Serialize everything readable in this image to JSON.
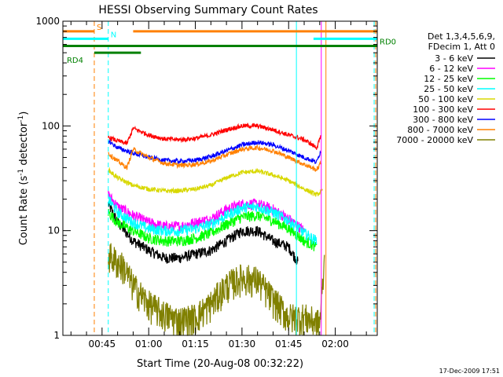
{
  "chart_data": {
    "type": "line",
    "title": "HESSI Observing Summary Count Rates",
    "ylabel_parts": [
      "Count Rate (s",
      "-1",
      " detector",
      "-1",
      ")"
    ],
    "xlabel": "Start Time (20-Aug-08 00:32:22)",
    "timestamp": "17-Dec-2009 17:51",
    "y_scale": "log",
    "ylim": [
      1,
      1000
    ],
    "yticks": [
      1,
      10,
      100,
      1000
    ],
    "ytick_labels": [
      "1",
      "10",
      "100",
      "1000"
    ],
    "xlim_minutes": [
      32.4,
      133.5
    ],
    "xticks_minutes": [
      45,
      60,
      75,
      90,
      105,
      120
    ],
    "xtick_labels": [
      "00:45",
      "01:00",
      "01:15",
      "01:30",
      "01:45",
      "02:00"
    ],
    "legend_title": [
      "Det 1,3,4,5,6,9,",
      "FDecim 1, Att 0"
    ],
    "series": [
      {
        "name": "3 - 6 keV",
        "color": "#000000",
        "x": [
          47,
          50,
          55,
          60,
          65,
          70,
          75,
          80,
          85,
          90,
          95,
          100,
          105,
          108
        ],
        "y": [
          18,
          12,
          8,
          6.5,
          5.5,
          5.5,
          6,
          6.5,
          8,
          10,
          10,
          8,
          7,
          5
        ]
      },
      {
        "name": "6 - 12 keV",
        "color": "#ff00ff",
        "x": [
          47,
          50,
          55,
          60,
          65,
          70,
          75,
          80,
          85,
          90,
          95,
          100,
          105,
          110
        ],
        "y": [
          22,
          17,
          14,
          12,
          11,
          11,
          12,
          13,
          16,
          18,
          18,
          16,
          13,
          10
        ]
      },
      {
        "name": "12 - 25 keV",
        "color": "#00ff00",
        "x": [
          47,
          50,
          55,
          60,
          65,
          70,
          75,
          80,
          85,
          90,
          95,
          100,
          105,
          110,
          114
        ],
        "y": [
          15,
          12,
          10,
          8.5,
          8,
          8,
          8.5,
          9.5,
          11.5,
          13.5,
          14,
          12.5,
          10.5,
          8,
          7
        ]
      },
      {
        "name": "25 - 50 keV",
        "color": "#00ffff",
        "x": [
          47,
          50,
          55,
          60,
          65,
          70,
          75,
          80,
          85,
          90,
          95,
          100,
          105,
          110,
          114
        ],
        "y": [
          20,
          15,
          12,
          10.5,
          10,
          10,
          10.5,
          11.5,
          14,
          16.5,
          17,
          15,
          12.5,
          9.5,
          8
        ]
      },
      {
        "name": "50 - 100 keV",
        "color": "#d8d800",
        "x": [
          47,
          50,
          55,
          60,
          65,
          70,
          75,
          80,
          85,
          90,
          95,
          100,
          105,
          110,
          114,
          116
        ],
        "y": [
          38,
          32,
          27,
          25,
          24,
          24,
          25,
          27,
          32,
          36,
          37,
          34,
          30,
          25,
          22,
          24
        ]
      },
      {
        "name": "100 - 300 keV",
        "color": "#ff0000",
        "x": [
          47,
          50,
          53,
          55,
          60,
          65,
          70,
          75,
          80,
          85,
          90,
          95,
          100,
          105,
          110,
          114,
          115.5
        ],
        "y": [
          78,
          72,
          68,
          95,
          82,
          75,
          74,
          76,
          82,
          92,
          100,
          100,
          92,
          82,
          74,
          62,
          80
        ]
      },
      {
        "name": "300 - 800 keV",
        "color": "#0000ff",
        "x": [
          47,
          50,
          55,
          60,
          65,
          70,
          75,
          80,
          85,
          90,
          95,
          100,
          105,
          110,
          114,
          115.5
        ],
        "y": [
          72,
          62,
          55,
          50,
          47,
          46,
          47,
          51,
          58,
          66,
          70,
          66,
          58,
          50,
          45,
          60
        ]
      },
      {
        "name": "800 - 7000 keV",
        "color": "#ff8000",
        "x": [
          47,
          50,
          53,
          55,
          60,
          65,
          70,
          75,
          80,
          85,
          90,
          95,
          100,
          105,
          110,
          114,
          115.5
        ],
        "y": [
          55,
          46,
          40,
          60,
          50,
          44,
          42,
          43,
          46,
          53,
          60,
          62,
          58,
          50,
          43,
          38,
          45
        ]
      },
      {
        "name": "7000 - 20000 keV",
        "color": "#808000",
        "x": [
          47,
          50,
          52,
          55,
          60,
          65,
          70,
          75,
          80,
          85,
          90,
          95,
          100,
          105,
          110,
          115,
          116.5
        ],
        "y": [
          6,
          5,
          4.5,
          3,
          2,
          1.6,
          1.4,
          1.5,
          2,
          3,
          3.6,
          3.4,
          2.2,
          1.5,
          1.5,
          1.3,
          5
        ]
      }
    ],
    "annotations": {
      "bars": [
        {
          "label": "S",
          "color": "#ff8000",
          "level": 800,
          "segments": [
            [
              32.4,
              42.5
            ],
            [
              55,
              133.5
            ]
          ]
        },
        {
          "label": "N",
          "color": "#00ffff",
          "level": 680,
          "segments": [
            [
              32.4,
              47
            ],
            [
              113,
              133.5
            ]
          ]
        },
        {
          "label": "RD0",
          "color": "#008000",
          "level": 580,
          "segments": [
            [
              32.4,
              133.5
            ]
          ]
        },
        {
          "label": "RD4",
          "color": "#008000",
          "level": 500,
          "segments": [
            [
              42.5,
              57.5
            ]
          ]
        }
      ],
      "vlines": [
        {
          "x": 42.5,
          "color": "#ff8000",
          "dash": true
        },
        {
          "x": 47,
          "color": "#00ffff",
          "dash": true
        },
        {
          "x": 107.5,
          "color": "#00ffff",
          "dash": false
        },
        {
          "x": 117,
          "color": "#ff8000",
          "dash": false
        },
        {
          "x": 115.5,
          "color": "#ff00ff",
          "dash": false
        },
        {
          "x": 132.5,
          "color": "#00ffff",
          "dash": true
        },
        {
          "x": 133,
          "color": "#ff8000",
          "dash": true
        }
      ]
    }
  }
}
